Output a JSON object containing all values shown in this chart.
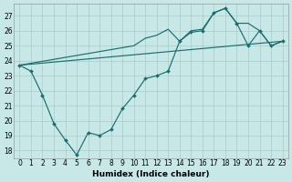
{
  "xlabel": "Humidex (Indice chaleur)",
  "xlim": [
    -0.5,
    23.5
  ],
  "ylim": [
    17.5,
    27.8
  ],
  "xticks": [
    0,
    1,
    2,
    3,
    4,
    5,
    6,
    7,
    8,
    9,
    10,
    11,
    12,
    13,
    14,
    15,
    16,
    17,
    18,
    19,
    20,
    21,
    22,
    23
  ],
  "yticks": [
    18,
    19,
    20,
    21,
    22,
    23,
    24,
    25,
    26,
    27
  ],
  "background_color": "#c8e8e8",
  "grid_color": "#a8c8c8",
  "line_color": "#1a6e6e",
  "line1_x": [
    0,
    1,
    2,
    3,
    4,
    5,
    6,
    7,
    8,
    9,
    10,
    11,
    12,
    13,
    14,
    15,
    16,
    17,
    18,
    19,
    20,
    21,
    22,
    23
  ],
  "line1_y": [
    23.7,
    23.3,
    21.7,
    19.8,
    18.7,
    17.7,
    19.2,
    19.0,
    19.4,
    20.8,
    21.7,
    22.8,
    23.0,
    23.3,
    25.3,
    25.9,
    26.0,
    27.2,
    27.5,
    26.5,
    25.0,
    26.0,
    25.0,
    25.3
  ],
  "line2_x": [
    0,
    10,
    11,
    12,
    13,
    14,
    15,
    16,
    17,
    18,
    19,
    20,
    21,
    22,
    23
  ],
  "line2_y": [
    23.7,
    25.0,
    25.5,
    25.7,
    26.1,
    25.3,
    26.0,
    26.1,
    27.2,
    27.5,
    26.5,
    26.5,
    26.0,
    25.0,
    25.3
  ],
  "line3_x": [
    0,
    23
  ],
  "line3_y": [
    23.7,
    25.3
  ]
}
